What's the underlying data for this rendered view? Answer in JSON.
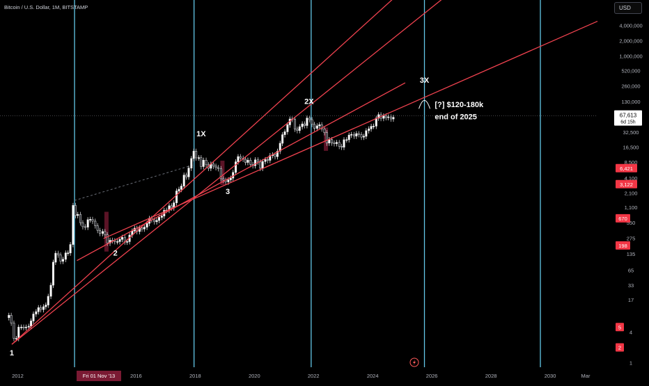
{
  "header": {
    "symbol_title": "Bitcoin / U.S. Dollar, 1M, BITSTAMP",
    "currency": "USD"
  },
  "chart_data": {
    "type": "candlestick",
    "title": "Bitcoin / U.S. Dollar, 1M, BITSTAMP",
    "scale": "log",
    "xlim": [
      2011.4,
      2031.6
    ],
    "ylim": [
      0.82,
      12500000
    ],
    "grid": false,
    "x_tick_labels": [
      {
        "x": 2012,
        "label": "2012"
      },
      {
        "x": 2016,
        "label": "2016"
      },
      {
        "x": 2018,
        "label": "2018"
      },
      {
        "x": 2020,
        "label": "2020"
      },
      {
        "x": 2022,
        "label": "2022"
      },
      {
        "x": 2024,
        "label": "2024"
      },
      {
        "x": 2026,
        "label": "2026"
      },
      {
        "x": 2028,
        "label": "2028"
      },
      {
        "x": 2030,
        "label": "2030"
      },
      {
        "x": 2031.2,
        "label": "Mar"
      }
    ],
    "crosshair_x_label": "Fri 01 Nov '13",
    "y_tick_labels": [
      "4,000,000",
      "2,000,000",
      "1,000,000",
      "520,000",
      "260,000",
      "130,000",
      "32,500",
      "16,500",
      "8,500",
      "4,100",
      "2,100",
      "1,100",
      "550",
      "275",
      "135",
      "65",
      "33",
      "17",
      "4",
      "1"
    ],
    "y_ticks": [
      4000000,
      2000000,
      1000000,
      520000,
      260000,
      130000,
      32500,
      16500,
      8500,
      4100,
      2100,
      1100,
      550,
      275,
      135,
      65,
      33,
      17,
      4,
      1
    ],
    "price_labels": [
      {
        "value": 67613,
        "text": "67,613",
        "sub": "6d 15h",
        "style": "current"
      },
      {
        "value": 6421,
        "text": "6,421",
        "style": "red"
      },
      {
        "value": 3122,
        "text": "3,122",
        "style": "red"
      },
      {
        "value": 670,
        "text": "670",
        "style": "red"
      },
      {
        "value": 198,
        "text": "198",
        "style": "red"
      },
      {
        "value": 5,
        "text": "5",
        "style": "red"
      },
      {
        "value": 2,
        "text": "2",
        "style": "red"
      }
    ],
    "current_price": 67613,
    "cycle_lines_x": [
      2013.92,
      2017.96,
      2021.92,
      2025.75,
      2029.67
    ],
    "trend_lines": [
      {
        "name": "trend-1",
        "points": [
          [
            2011.8,
            2.3
          ],
          [
            2024.9,
            17000000
          ]
        ]
      },
      {
        "name": "trend-2",
        "points": [
          [
            2011.8,
            2.3
          ],
          [
            2026.6,
            17000000
          ]
        ]
      },
      {
        "name": "trend-3",
        "points": [
          [
            2014.9,
            270
          ],
          [
            2031.6,
            4800000
          ]
        ]
      },
      {
        "name": "trend-4",
        "points": [
          [
            2014.0,
            100
          ],
          [
            2025.1,
            300000
          ]
        ]
      }
    ],
    "dashed_line": {
      "points": [
        [
          2013.92,
          1500
        ],
        [
          2017.96,
          7500
        ]
      ]
    },
    "highlight_zones": [
      {
        "x": 2015.0,
        "low": 150,
        "high": 900
      },
      {
        "x": 2018.92,
        "low": 3000,
        "high": 9000
      },
      {
        "x": 2022.42,
        "low": 14000,
        "high": 40000
      }
    ],
    "annotations": [
      {
        "x": 2011.8,
        "y": 1.4,
        "text": "1"
      },
      {
        "x": 2015.3,
        "y": 125,
        "text": "2"
      },
      {
        "x": 2019.1,
        "y": 2000,
        "text": "3"
      },
      {
        "x": 2018.2,
        "y": 27000,
        "text": "1X"
      },
      {
        "x": 2021.85,
        "y": 115000,
        "text": "2X"
      },
      {
        "x": 2025.75,
        "y": 300000,
        "text": "3X"
      },
      {
        "x": 2026.1,
        "y": 100000,
        "text": "[?] $120-180k"
      },
      {
        "x": 2026.1,
        "y": 58000,
        "text": "end of 2025"
      }
    ],
    "series": [
      {
        "x": [
          2011.7,
          2011.78,
          2011.87,
          2011.95,
          2012.03,
          2012.12,
          2012.2,
          2012.28,
          2012.37,
          2012.45,
          2012.53,
          2012.62,
          2012.7,
          2012.78,
          2012.87,
          2012.95,
          2013.03,
          2013.12,
          2013.2,
          2013.28,
          2013.37,
          2013.45,
          2013.53,
          2013.62,
          2013.7,
          2013.78,
          2013.87,
          2013.95,
          2014.03,
          2014.12,
          2014.2,
          2014.28,
          2014.37,
          2014.45,
          2014.53,
          2014.62,
          2014.7,
          2014.78,
          2014.87,
          2014.95,
          2015.03,
          2015.12,
          2015.2,
          2015.28,
          2015.37,
          2015.45,
          2015.53,
          2015.62,
          2015.7,
          2015.78,
          2015.87,
          2015.95,
          2016.03,
          2016.12,
          2016.2,
          2016.28,
          2016.37,
          2016.45,
          2016.53,
          2016.62,
          2016.7,
          2016.78,
          2016.87,
          2016.95,
          2017.03,
          2017.12,
          2017.2,
          2017.28,
          2017.37,
          2017.45,
          2017.53,
          2017.62,
          2017.7,
          2017.78,
          2017.87,
          2017.95,
          2018.03,
          2018.12,
          2018.2,
          2018.28,
          2018.37,
          2018.45,
          2018.53,
          2018.62,
          2018.7,
          2018.78,
          2018.87,
          2018.95,
          2019.03,
          2019.12,
          2019.2,
          2019.28,
          2019.37,
          2019.45,
          2019.53,
          2019.62,
          2019.7,
          2019.78,
          2019.87,
          2019.95,
          2020.03,
          2020.12,
          2020.2,
          2020.28,
          2020.37,
          2020.45,
          2020.53,
          2020.62,
          2020.7,
          2020.78,
          2020.87,
          2020.95,
          2021.03,
          2021.12,
          2021.2,
          2021.28,
          2021.37,
          2021.45,
          2021.53,
          2021.62,
          2021.7,
          2021.78,
          2021.87,
          2021.95,
          2022.03,
          2022.12,
          2022.2,
          2022.28,
          2022.37,
          2022.45,
          2022.53,
          2022.62,
          2022.7,
          2022.78,
          2022.87,
          2022.95,
          2023.03,
          2023.12,
          2023.2,
          2023.28,
          2023.37,
          2023.45,
          2023.53,
          2023.62,
          2023.7,
          2023.78,
          2023.87,
          2023.95,
          2024.03,
          2024.12,
          2024.2,
          2024.28,
          2024.37,
          2024.45,
          2024.53,
          2024.62,
          2024.7
        ],
        "close": [
          8.5,
          6,
          3,
          3,
          5,
          5,
          4.9,
          5,
          5.2,
          6.6,
          9,
          10,
          12,
          11,
          12.5,
          13.5,
          20,
          33,
          93,
          139,
          129,
          97,
          106,
          141,
          141,
          206,
          1200,
          760,
          800,
          550,
          460,
          450,
          630,
          640,
          590,
          480,
          390,
          340,
          370,
          320,
          220,
          250,
          245,
          235,
          235,
          260,
          285,
          230,
          235,
          315,
          380,
          430,
          370,
          435,
          415,
          450,
          535,
          670,
          625,
          575,
          610,
          700,
          745,
          960,
          970,
          1180,
          1070,
          1350,
          2300,
          2480,
          2860,
          4700,
          4340,
          6440,
          9900,
          13800,
          10200,
          10300,
          6900,
          9200,
          7500,
          6390,
          7730,
          7040,
          6600,
          6300,
          4000,
          3740,
          3460,
          3800,
          4100,
          5300,
          8550,
          10800,
          10100,
          9600,
          8300,
          9200,
          7600,
          7200,
          9350,
          8500,
          6400,
          8650,
          9450,
          9140,
          11350,
          11700,
          10800,
          13800,
          19700,
          28990,
          33100,
          45200,
          58800,
          57700,
          37300,
          35000,
          41500,
          47100,
          43800,
          61300,
          57000,
          46300,
          38500,
          43200,
          45500,
          37700,
          31800,
          19900,
          23300,
          20000,
          19400,
          20500,
          17200,
          16500,
          23100,
          23150,
          28500,
          29300,
          27200,
          30500,
          29200,
          26000,
          27000,
          34700,
          37700,
          42300,
          42600,
          61200,
          71300,
          60600,
          67500,
          62700,
          64600,
          58900,
          63300
        ]
      }
    ]
  }
}
